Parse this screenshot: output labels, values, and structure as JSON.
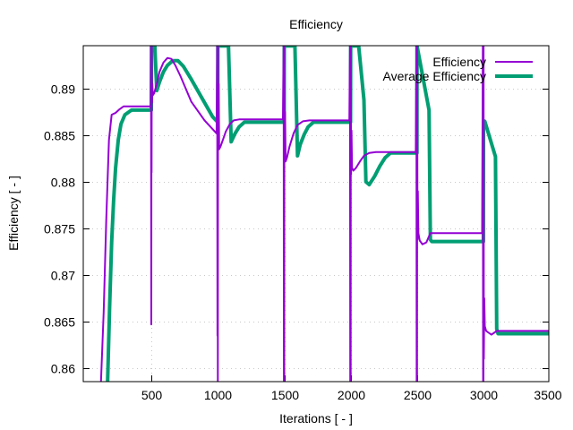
{
  "chart_data": {
    "type": "line",
    "title": "Efficiency",
    "xlabel": "Iterations [ - ]",
    "ylabel": "Efficiency [ - ]",
    "xlim": [
      0,
      3500
    ],
    "ylim": [
      0.8586,
      0.8946
    ],
    "grid": true,
    "legend_position": "top-right",
    "x_ticks": [
      500,
      1000,
      1500,
      2000,
      2500,
      3000,
      3500
    ],
    "x_tick_labels": [
      "500",
      "1000",
      "1500",
      "2000",
      "2500",
      "3000",
      "3500"
    ],
    "y_ticks": [
      0.86,
      0.865,
      0.87,
      0.875,
      0.88,
      0.885,
      0.89
    ],
    "y_tick_labels": [
      "0.86",
      "0.865",
      "0.87",
      "0.875",
      "0.88",
      "0.885",
      "0.89"
    ],
    "series": [
      {
        "name": "Efficiency",
        "color": "#9400d3",
        "x": [
          120,
          140,
          160,
          180,
          200,
          230,
          260,
          290,
          330,
          380,
          440,
          495,
          497,
          499,
          500,
          501,
          502,
          504,
          506,
          510,
          520,
          540,
          560,
          590,
          620,
          650,
          680,
          720,
          800,
          900,
          990,
          995,
          997,
          999,
          1000,
          1001,
          1003,
          1006,
          1010,
          1020,
          1040,
          1060,
          1090,
          1120,
          1160,
          1200,
          1300,
          1400,
          1490,
          1495,
          1497,
          1499,
          1500,
          1501,
          1503,
          1506,
          1510,
          1520,
          1540,
          1570,
          1600,
          1640,
          1690,
          1750,
          1850,
          1990,
          1995,
          1997,
          1999,
          2000,
          2001,
          2003,
          2006,
          2010,
          2020,
          2040,
          2070,
          2100,
          2140,
          2190,
          2240,
          2300,
          2400,
          2490,
          2495,
          2497,
          2499,
          2500,
          2501,
          2503,
          2506,
          2510,
          2520,
          2540,
          2570,
          2600,
          2630,
          2700,
          2800,
          2990,
          2995,
          2997,
          2999,
          3000,
          3001,
          3003,
          3006,
          3010,
          3020,
          3040,
          3060,
          3080,
          3100,
          3200,
          3300,
          3500
        ],
        "y": [
          0.8586,
          0.866,
          0.876,
          0.8845,
          0.8872,
          0.8874,
          0.8878,
          0.8881,
          0.8881,
          0.8881,
          0.8881,
          0.8881,
          0.8946,
          0.8647,
          0.8946,
          0.881,
          0.8946,
          0.8885,
          0.8905,
          0.8893,
          0.8895,
          0.8905,
          0.8918,
          0.8928,
          0.8933,
          0.8932,
          0.8925,
          0.8913,
          0.8886,
          0.8866,
          0.8852,
          0.8946,
          0.8635,
          0.8946,
          0.8586,
          0.8946,
          0.8845,
          0.8905,
          0.8835,
          0.8838,
          0.8846,
          0.8854,
          0.8862,
          0.8866,
          0.8867,
          0.8867,
          0.8867,
          0.8867,
          0.8867,
          0.8946,
          0.8586,
          0.8946,
          0.8586,
          0.8946,
          0.8826,
          0.8875,
          0.8822,
          0.8826,
          0.8838,
          0.8852,
          0.8861,
          0.8865,
          0.8866,
          0.8866,
          0.8866,
          0.8866,
          0.8946,
          0.8586,
          0.8946,
          0.8586,
          0.8946,
          0.8808,
          0.8855,
          0.8815,
          0.8812,
          0.8815,
          0.8822,
          0.8828,
          0.8831,
          0.8832,
          0.8832,
          0.8832,
          0.8832,
          0.8832,
          0.8946,
          0.8586,
          0.8946,
          0.8586,
          0.8946,
          0.8738,
          0.879,
          0.8745,
          0.8737,
          0.8733,
          0.8735,
          0.8745,
          0.8745,
          0.8745,
          0.8745,
          0.8745,
          0.8946,
          0.8586,
          0.8946,
          0.8586,
          0.8946,
          0.861,
          0.8675,
          0.8645,
          0.864,
          0.8638,
          0.8636,
          0.8638,
          0.864,
          0.864,
          0.864,
          0.864
        ]
      },
      {
        "name": "Average Efficiency",
        "color": "#009e73",
        "x": [
          170,
          185,
          200,
          215,
          230,
          250,
          270,
          300,
          350,
          400,
          450,
          499,
          500,
          510,
          525,
          540,
          560,
          590,
          620,
          660,
          700,
          740,
          800,
          880,
          960,
          999,
          1000,
          1080,
          1100,
          1130,
          1160,
          1200,
          1300,
          1400,
          1499,
          1500,
          1580,
          1600,
          1620,
          1650,
          1680,
          1720,
          1800,
          1900,
          1999,
          2000,
          2060,
          2100,
          2115,
          2140,
          2180,
          2220,
          2260,
          2300,
          2400,
          2499,
          2500,
          2590,
          2600,
          2610,
          2640,
          2700,
          2800,
          2900,
          2999,
          3000,
          3010,
          3090,
          3100,
          3110,
          3150,
          3200,
          3300,
          3500
        ],
        "y": [
          0.8586,
          0.8665,
          0.8735,
          0.878,
          0.8815,
          0.8845,
          0.8862,
          0.8872,
          0.8877,
          0.8877,
          0.8877,
          0.8877,
          0.8946,
          0.8946,
          0.8946,
          0.8898,
          0.8907,
          0.8918,
          0.8925,
          0.893,
          0.893,
          0.8924,
          0.891,
          0.889,
          0.887,
          0.8864,
          0.8946,
          0.8946,
          0.8843,
          0.8852,
          0.8859,
          0.8864,
          0.8864,
          0.8864,
          0.8864,
          0.8946,
          0.8946,
          0.8828,
          0.884,
          0.8851,
          0.8859,
          0.8864,
          0.8864,
          0.8864,
          0.8864,
          0.8946,
          0.8946,
          0.8888,
          0.88,
          0.8797,
          0.8806,
          0.8817,
          0.8826,
          0.8831,
          0.8831,
          0.8831,
          0.8946,
          0.8877,
          0.8738,
          0.8736,
          0.8736,
          0.8736,
          0.8736,
          0.8736,
          0.8736,
          0.8863,
          0.8865,
          0.8827,
          0.8642,
          0.8637,
          0.8637,
          0.8637,
          0.8637,
          0.8637
        ]
      }
    ]
  }
}
